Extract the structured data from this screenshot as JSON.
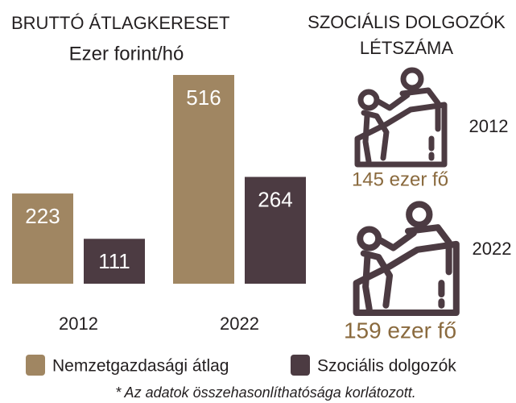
{
  "chart_data": [
    {
      "type": "bar",
      "title": "BRUTTÓ ÁTLAGKERESET",
      "subtitle": "Ezer forint/hó",
      "categories": [
        "2012",
        "2022"
      ],
      "series": [
        {
          "name": "Nemzetgazdasági átlag",
          "color": "#a08662",
          "values": [
            223,
            516
          ]
        },
        {
          "name": "Szociális dolgozók",
          "color": "#4c3b42",
          "values": [
            111,
            264
          ]
        }
      ],
      "footnote": "* Az adatok összehasonlíthatósága korlátozott."
    },
    {
      "type": "pictogram",
      "title": "SZOCIÁLIS DOLGOZÓK LÉTSZÁMA",
      "color": "#4c3b42",
      "categories": [
        "2012",
        "2022"
      ],
      "values": [
        145,
        159
      ],
      "value_labels": [
        "145 ezer fő",
        "159 ezer fő"
      ]
    }
  ]
}
